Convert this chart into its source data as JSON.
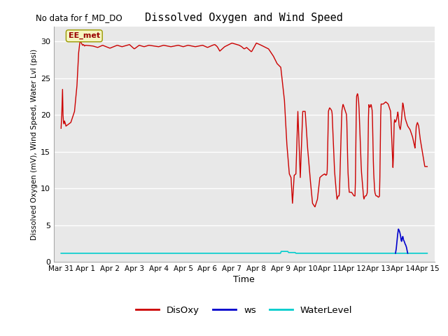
{
  "title": "Dissolved Oxygen and Wind Speed",
  "no_data_label": "No data for f_MD_DO",
  "xlabel": "Time",
  "ylabel": "Dissolved Oxygen (mV), Wind Speed, Water Lvl (psi)",
  "ylim": [
    0,
    32
  ],
  "yticks": [
    0,
    5,
    10,
    15,
    20,
    25,
    30
  ],
  "xtick_labels": [
    "Mar 31",
    "Apr 1",
    "Apr 2",
    "Apr 3",
    "Apr 4",
    "Apr 5",
    "Apr 6",
    "Apr 7",
    "Apr 8",
    "Apr 9",
    "Apr 10",
    "Apr 11",
    "Apr 12",
    "Apr 13",
    "Apr 14",
    "Apr 15"
  ],
  "annotation_text": "EE_met",
  "bg_color": "#e8e8e8",
  "disoxy_color": "#cc0000",
  "ws_color": "#0000cc",
  "waterlevel_color": "#00cccc",
  "legend_labels": [
    "DisOxy",
    "ws",
    "WaterLevel"
  ],
  "fig_width": 6.4,
  "fig_height": 4.8,
  "dpi": 100
}
